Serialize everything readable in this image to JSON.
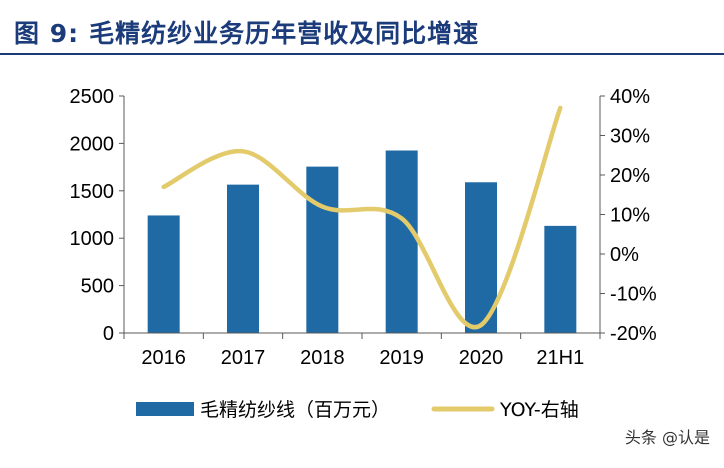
{
  "figure": {
    "label": "图 9:",
    "title": "毛精纺纱业务历年营收及同比增速"
  },
  "watermark": "头条 @认是",
  "colors": {
    "title": "#1b3b7a",
    "bar": "#1f6aa5",
    "line": "#e3ca6b",
    "axis": "#595959",
    "text": "#000000"
  },
  "chart_data": {
    "type": "bar",
    "title": "毛精纺纱业务历年营收及同比增速",
    "categories": [
      "2016",
      "2017",
      "2018",
      "2019",
      "2020",
      "21H1"
    ],
    "series": [
      {
        "name": "毛精纺纱线（百万元）",
        "type": "bar",
        "axis": "left",
        "values": [
          1240,
          1565,
          1755,
          1925,
          1590,
          1130
        ]
      },
      {
        "name": "YOY-右轴",
        "type": "line",
        "axis": "right",
        "smooth": true,
        "values": [
          0.17,
          0.26,
          0.12,
          0.09,
          -0.18,
          0.37
        ]
      }
    ],
    "left_axis": {
      "min": 0,
      "max": 2500,
      "ticks": [
        "0",
        "500",
        "1000",
        "1500",
        "2000",
        "2500"
      ]
    },
    "right_axis": {
      "min": -0.2,
      "max": 0.4,
      "ticks": [
        "-20%",
        "-10%",
        "0%",
        "10%",
        "20%",
        "30%",
        "40%"
      ]
    },
    "grid": false,
    "legend_position": "bottom"
  }
}
